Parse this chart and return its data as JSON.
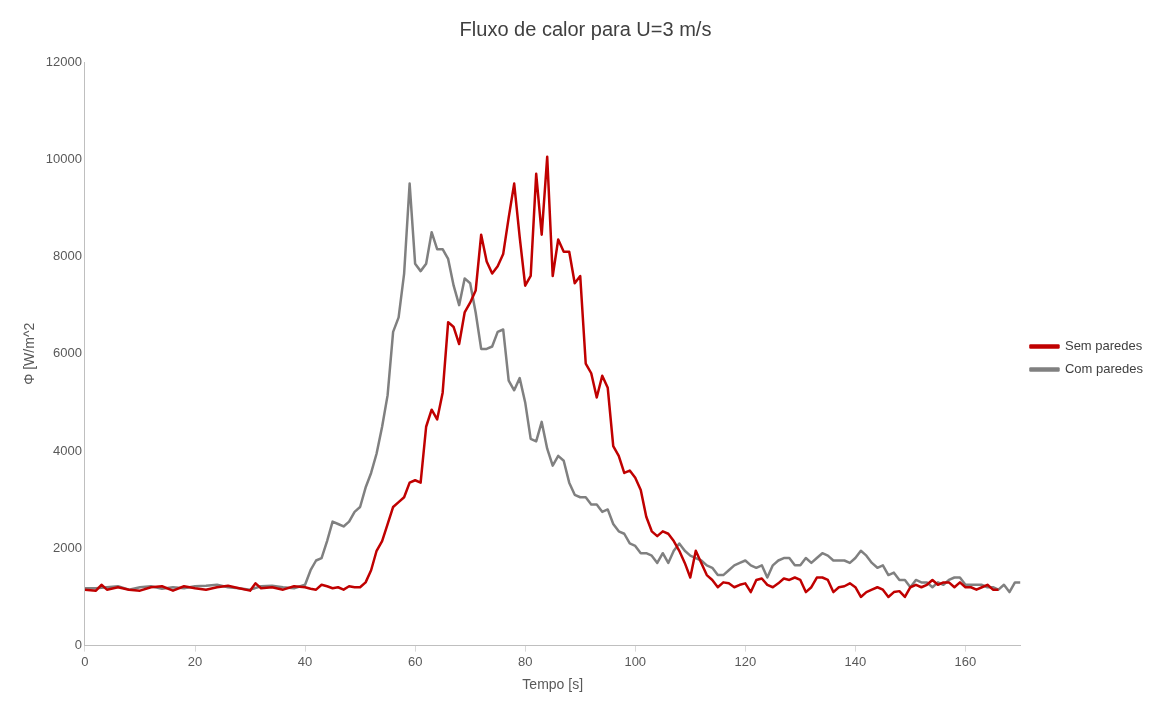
{
  "chart_data": {
    "type": "line",
    "title": "Fluxo de calor para U=3 m/s",
    "xlabel": "Tempo [s]",
    "ylabel": "Φ [W/m^2",
    "xlim": [
      0,
      170
    ],
    "xticks": [
      0,
      20,
      40,
      60,
      80,
      100,
      120,
      140,
      160
    ],
    "ylim": [
      0,
      12000
    ],
    "yticks": [
      0,
      2000,
      4000,
      6000,
      8000,
      10000,
      12000
    ],
    "grid": false,
    "legend": "right",
    "marker": "none",
    "line_style": "solid",
    "series": [
      {
        "name": "Sem paredes",
        "color": "#c00000",
        "x": [
          0,
          2,
          3,
          4,
          6,
          8,
          10,
          12,
          14,
          16,
          18,
          20,
          22,
          24,
          26,
          28,
          30,
          31,
          32,
          34,
          36,
          38,
          40,
          41,
          42,
          43,
          44,
          45,
          46,
          47,
          48,
          49,
          50,
          51,
          52,
          53,
          54,
          55,
          56,
          57,
          58,
          59,
          60,
          61,
          62,
          63,
          64,
          65,
          66,
          67,
          68,
          69,
          70,
          71,
          72,
          73,
          74,
          75,
          76,
          77,
          78,
          79,
          80,
          81,
          82,
          83,
          84,
          85,
          86,
          87,
          88,
          89,
          90,
          91,
          92,
          93,
          94,
          95,
          96,
          97,
          98,
          99,
          100,
          101,
          102,
          103,
          104,
          105,
          106,
          107,
          108,
          109,
          110,
          111,
          112,
          113,
          114,
          115,
          116,
          117,
          118,
          119,
          120,
          121,
          122,
          123,
          124,
          125,
          126,
          127,
          128,
          129,
          130,
          131,
          132,
          133,
          134,
          135,
          136,
          137,
          138,
          139,
          140,
          141,
          142,
          143,
          144,
          145,
          146,
          147,
          148,
          149,
          150,
          151,
          152,
          153,
          154,
          155,
          156,
          157,
          158,
          159,
          160,
          161,
          162,
          163,
          164,
          165,
          166
        ],
        "values": [
          1150,
          1130,
          1250,
          1150,
          1200,
          1150,
          1130,
          1200,
          1220,
          1130,
          1220,
          1180,
          1150,
          1200,
          1230,
          1180,
          1130,
          1280,
          1180,
          1200,
          1150,
          1220,
          1200,
          1170,
          1150,
          1250,
          1220,
          1180,
          1200,
          1150,
          1220,
          1200,
          1200,
          1300,
          1550,
          1950,
          2150,
          2500,
          2850,
          2950,
          3050,
          3350,
          3400,
          3350,
          4500,
          4850,
          4650,
          5200,
          6650,
          6550,
          6200,
          6850,
          7050,
          7300,
          8450,
          7900,
          7650,
          7800,
          8050,
          8800,
          9500,
          8400,
          7400,
          7600,
          9700,
          8450,
          10050,
          7600,
          8350,
          8100,
          8100,
          7450,
          7600,
          5800,
          5600,
          5100,
          5550,
          5300,
          4100,
          3900,
          3550,
          3600,
          3450,
          3200,
          2650,
          2350,
          2250,
          2350,
          2300,
          2150,
          1950,
          1700,
          1400,
          1950,
          1700,
          1450,
          1350,
          1200,
          1300,
          1280,
          1200,
          1250,
          1280,
          1100,
          1350,
          1380,
          1250,
          1200,
          1280,
          1380,
          1350,
          1400,
          1350,
          1100,
          1200,
          1400,
          1400,
          1350,
          1100,
          1200,
          1220,
          1280,
          1200,
          1000,
          1100,
          1150,
          1200,
          1150,
          1000,
          1100,
          1120,
          1000,
          1200,
          1250,
          1200,
          1250,
          1350,
          1250,
          1300,
          1300,
          1200,
          1300,
          1200,
          1200,
          1150,
          1200,
          1250,
          1150,
          1150
        ]
      },
      {
        "name": "Com paredes",
        "color": "#808080",
        "x": [
          0,
          2,
          4,
          6,
          8,
          10,
          12,
          14,
          16,
          18,
          20,
          22,
          24,
          26,
          28,
          30,
          32,
          34,
          36,
          38,
          40,
          41,
          42,
          43,
          44,
          45,
          46,
          47,
          48,
          49,
          50,
          51,
          52,
          53,
          54,
          55,
          56,
          57,
          58,
          59,
          60,
          61,
          62,
          63,
          64,
          65,
          66,
          67,
          68,
          69,
          70,
          71,
          72,
          73,
          74,
          75,
          76,
          77,
          78,
          79,
          80,
          81,
          82,
          83,
          84,
          85,
          86,
          87,
          88,
          89,
          90,
          91,
          92,
          93,
          94,
          95,
          96,
          97,
          98,
          99,
          100,
          101,
          102,
          103,
          104,
          105,
          106,
          107,
          108,
          109,
          110,
          111,
          112,
          113,
          114,
          115,
          116,
          117,
          118,
          119,
          120,
          121,
          122,
          123,
          124,
          125,
          126,
          127,
          128,
          129,
          130,
          131,
          132,
          133,
          134,
          135,
          136,
          137,
          138,
          139,
          140,
          141,
          142,
          143,
          144,
          145,
          146,
          147,
          148,
          149,
          150,
          151,
          152,
          153,
          154,
          155,
          156,
          157,
          158,
          159,
          160,
          161,
          162,
          163,
          164,
          165,
          166,
          167,
          168,
          169,
          170
        ],
        "values": [
          1180,
          1180,
          1200,
          1220,
          1150,
          1200,
          1220,
          1170,
          1200,
          1180,
          1220,
          1230,
          1250,
          1200,
          1180,
          1150,
          1220,
          1230,
          1200,
          1180,
          1250,
          1550,
          1750,
          1800,
          2150,
          2550,
          2500,
          2450,
          2550,
          2750,
          2850,
          3250,
          3550,
          3950,
          4500,
          5150,
          6450,
          6750,
          7650,
          9500,
          7850,
          7700,
          7850,
          8500,
          8150,
          8150,
          7950,
          7400,
          7000,
          7550,
          7450,
          6850,
          6100,
          6100,
          6150,
          6450,
          6500,
          5450,
          5250,
          5500,
          5000,
          4250,
          4200,
          4600,
          4050,
          3700,
          3900,
          3800,
          3350,
          3100,
          3050,
          3050,
          2900,
          2900,
          2750,
          2800,
          2500,
          2350,
          2300,
          2100,
          2050,
          1900,
          1900,
          1850,
          1700,
          1900,
          1700,
          1950,
          2100,
          1950,
          1850,
          1800,
          1750,
          1650,
          1600,
          1450,
          1450,
          1550,
          1650,
          1700,
          1750,
          1650,
          1600,
          1650,
          1400,
          1650,
          1750,
          1800,
          1800,
          1650,
          1650,
          1800,
          1700,
          1800,
          1900,
          1850,
          1750,
          1750,
          1750,
          1700,
          1800,
          1950,
          1850,
          1700,
          1600,
          1650,
          1450,
          1500,
          1350,
          1350,
          1200,
          1350,
          1300,
          1300,
          1200,
          1300,
          1250,
          1350,
          1400,
          1400,
          1250,
          1250,
          1250,
          1250,
          1200,
          1200,
          1150,
          1250,
          1100,
          1300,
          1300
        ]
      }
    ]
  }
}
